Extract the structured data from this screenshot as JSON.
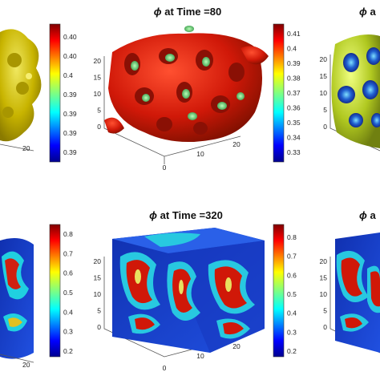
{
  "chart_data": [
    {
      "type": "3d-isosurface",
      "panel": "top-left",
      "title": "",
      "title_prefix": "",
      "axis_ticks": [
        "20"
      ],
      "colorbar_ticks": [
        "0.40",
        "0.40",
        "0.4",
        "0.39",
        "0.39",
        "0.39",
        "0.39"
      ],
      "surface_colors": [
        "#d8c800",
        "#b8a400"
      ]
    },
    {
      "type": "3d-isosurface",
      "panel": "top-middle",
      "title_prefix": "ϕ",
      "title": " at Time =80",
      "axis_ticks_y": [
        "20",
        "15",
        "10",
        "5",
        "0"
      ],
      "axis_ticks_x": [
        "0",
        "10",
        "20"
      ],
      "colorbar_ticks": [
        "0.41",
        "0.4",
        "0.39",
        "0.38",
        "0.37",
        "0.36",
        "0.35",
        "0.34",
        "0.33"
      ],
      "surface_colors": [
        "#d02010",
        "#4cb860"
      ]
    },
    {
      "type": "3d-isosurface",
      "panel": "top-right",
      "title_prefix": "ϕ",
      "title": " a",
      "axis_ticks_y": [
        "20",
        "15",
        "10",
        "5",
        "0"
      ],
      "surface_colors": [
        "#c8d820",
        "#2050c0"
      ]
    },
    {
      "type": "3d-isosurface",
      "panel": "bottom-left",
      "title": "",
      "axis_ticks": [
        "20"
      ],
      "colorbar_ticks": [
        "0.8",
        "0.7",
        "0.6",
        "0.5",
        "0.4",
        "0.3",
        "0.2"
      ]
    },
    {
      "type": "3d-isosurface",
      "panel": "bottom-middle",
      "title_prefix": "ϕ",
      "title": " at Time =320",
      "axis_ticks_y": [
        "20",
        "15",
        "10",
        "5",
        "0"
      ],
      "axis_ticks_x": [
        "0",
        "10",
        "20"
      ],
      "colorbar_ticks": [
        "0.8",
        "0.7",
        "0.6",
        "0.5",
        "0.4",
        "0.3",
        "0.2"
      ]
    },
    {
      "type": "3d-isosurface",
      "panel": "bottom-right",
      "title_prefix": "ϕ",
      "title": " a",
      "axis_ticks_y": [
        "20",
        "15",
        "10",
        "5",
        "0"
      ]
    }
  ],
  "colormap": "jet"
}
